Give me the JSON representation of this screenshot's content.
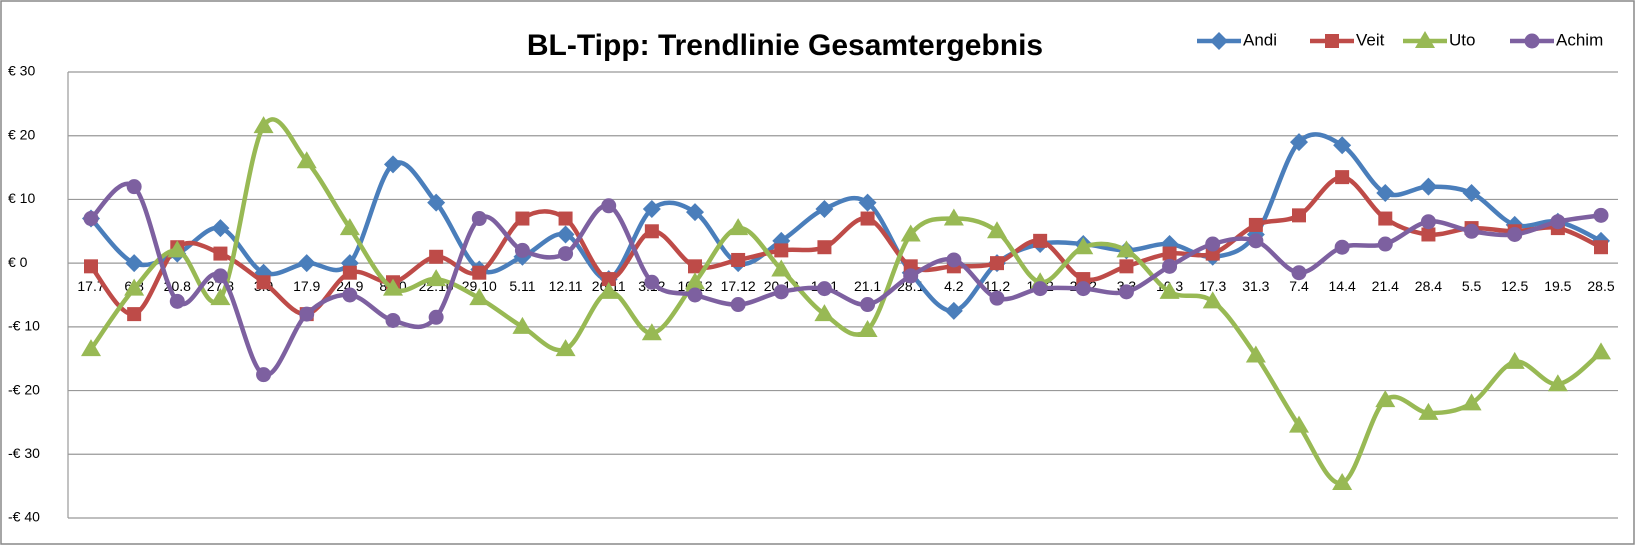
{
  "chart_data": {
    "type": "line",
    "title": "BL-Tipp: Trendlinie Gesamtergebnis",
    "categories": [
      "17.7",
      "6.8",
      "20.8",
      "27.8",
      "3.9",
      "17.9",
      "24.9",
      "8.10",
      "22.10",
      "29.10",
      "5.11",
      "12.11",
      "26.11",
      "3.12",
      "10.12",
      "17.12",
      "20.12",
      "14.1",
      "21.1",
      "28.1",
      "4.2",
      "11.2",
      "18.2",
      "25.2",
      "3.3",
      "10.3",
      "17.3",
      "31.3",
      "7.4",
      "14.4",
      "21.4",
      "28.4",
      "5.5",
      "12.5",
      "19.5",
      "28.5"
    ],
    "series": [
      {
        "name": "Andi",
        "color": "#4a7ebb",
        "marker": "diamond",
        "values": [
          7,
          0,
          1.5,
          5.5,
          -1.5,
          0,
          0,
          15.5,
          9.5,
          -1,
          1,
          4.5,
          -2.5,
          8.5,
          8,
          0,
          3.5,
          8.5,
          9.5,
          -1.5,
          -7.5,
          0,
          3,
          3,
          2,
          3,
          1,
          4.5,
          19,
          18.5,
          11,
          12,
          11,
          6,
          6.5,
          3.5
        ]
      },
      {
        "name": "Veit",
        "color": "#be4b48",
        "marker": "square",
        "values": [
          -0.5,
          -8,
          2.5,
          1.5,
          -3,
          -8,
          -1.5,
          -3,
          1,
          -1.5,
          7,
          7,
          -2.5,
          5,
          -0.5,
          0.5,
          2,
          2.5,
          7,
          -0.5,
          -0.5,
          0,
          3.5,
          -2.5,
          -0.5,
          1.5,
          1.5,
          6,
          7.5,
          13.5,
          7,
          4.5,
          5.5,
          5,
          5.5,
          2.5
        ]
      },
      {
        "name": "Uto",
        "color": "#98b954",
        "marker": "triangle",
        "values": [
          -13.5,
          -4,
          2,
          -5.5,
          21.5,
          16,
          5.5,
          -4,
          -2.5,
          -5.5,
          -10,
          -13.5,
          -4.5,
          -11,
          -3,
          5.5,
          -1,
          -8,
          -10.5,
          4.5,
          7,
          5,
          -3,
          2.5,
          2,
          -4.5,
          -6,
          -14.5,
          -25.5,
          -34.5,
          -21.5,
          -23.5,
          -22,
          -15.5,
          -19,
          -14
        ]
      },
      {
        "name": "Achim",
        "color": "#7d60a0",
        "marker": "circle",
        "values": [
          7,
          12,
          -6,
          -2,
          -17.5,
          -8,
          -5,
          -9,
          -8.5,
          7,
          2,
          1.5,
          9,
          -3,
          -5,
          -6.5,
          -4.5,
          -4,
          -6.5,
          -2,
          0.5,
          -5.5,
          -4,
          -4,
          -4.5,
          -0.5,
          3,
          3.5,
          -1.5,
          2.5,
          3,
          6.5,
          5,
          4.5,
          6.5,
          7.5
        ]
      }
    ],
    "ylim": [
      -40,
      30
    ],
    "yticks": [
      {
        "value": -40,
        "label": "-€ 40"
      },
      {
        "value": -30,
        "label": "-€ 30"
      },
      {
        "value": -20,
        "label": "-€ 20"
      },
      {
        "value": -10,
        "label": "-€ 10"
      },
      {
        "value": 0,
        "label": "€ 0"
      },
      {
        "value": 10,
        "label": "€ 10"
      },
      {
        "value": 20,
        "label": "€ 20"
      },
      {
        "value": 30,
        "label": "€ 30"
      }
    ],
    "grid": true,
    "smooth": true,
    "legend": "top-right"
  }
}
